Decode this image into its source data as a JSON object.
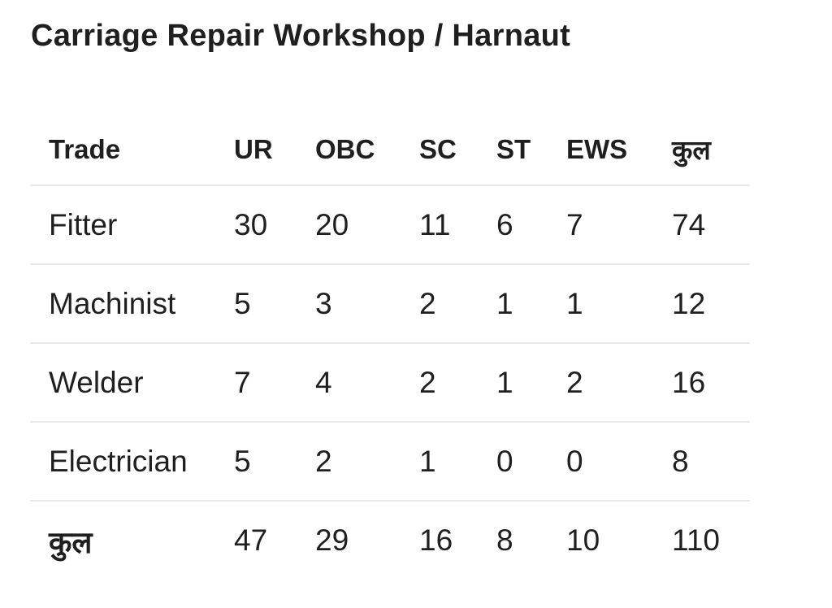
{
  "page": {
    "title": "Carriage Repair Workshop / Harnaut"
  },
  "colors": {
    "background": "#ffffff",
    "text": "#1f1f1f",
    "divider": "#e8e8e8"
  },
  "chart_data": {
    "type": "table",
    "title": "Carriage Repair Workshop / Harnaut",
    "columns": [
      "Trade",
      "UR",
      "OBC",
      "SC",
      "ST",
      "EWS",
      "कुल"
    ],
    "rows": [
      {
        "label": "Fitter",
        "values": [
          30,
          20,
          11,
          6,
          7,
          74
        ],
        "is_total": false
      },
      {
        "label": "Machinist",
        "values": [
          5,
          3,
          2,
          1,
          1,
          12
        ],
        "is_total": false
      },
      {
        "label": "Welder",
        "values": [
          7,
          4,
          2,
          1,
          2,
          16
        ],
        "is_total": false
      },
      {
        "label": "Electrician",
        "values": [
          5,
          2,
          1,
          0,
          0,
          8
        ],
        "is_total": false
      },
      {
        "label": "कुल",
        "values": [
          47,
          29,
          16,
          8,
          10,
          110
        ],
        "is_total": true
      }
    ],
    "layout": {
      "legend": "none",
      "grid": "horizontal-dividers-only",
      "total_row_label_bold": true
    }
  }
}
